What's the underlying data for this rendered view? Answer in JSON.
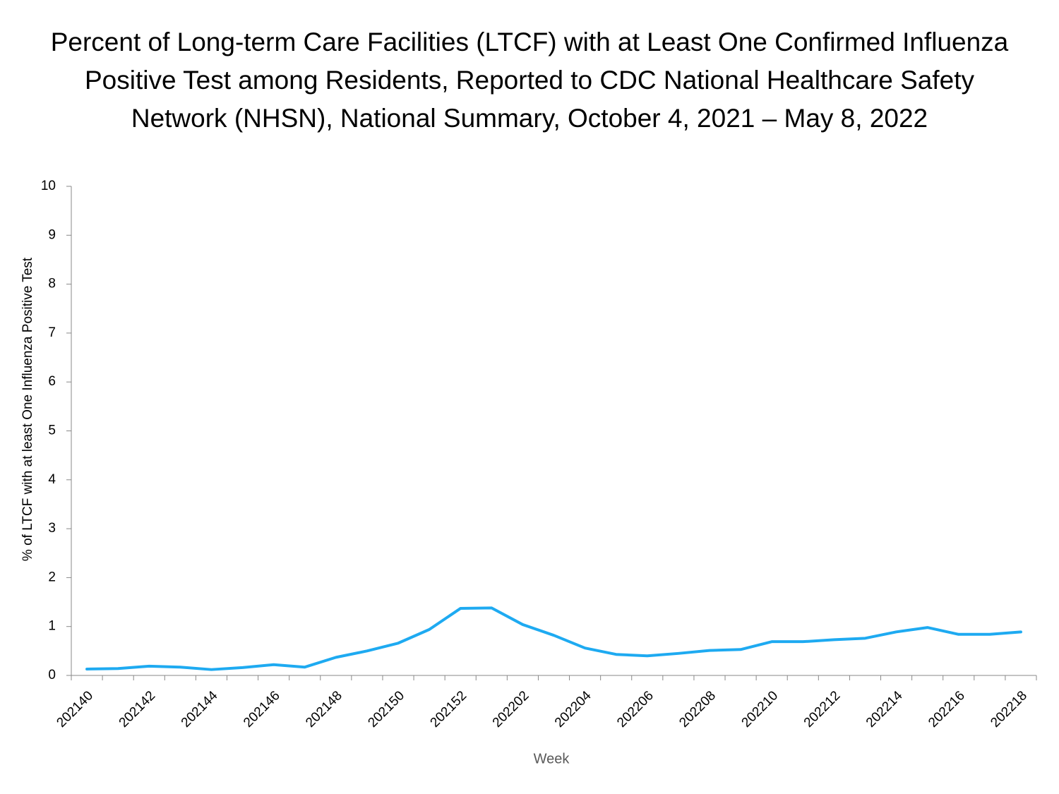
{
  "chart_data": {
    "type": "line",
    "title": [
      "Percent of Long-term Care Facilities (LTCF) with at Least One Confirmed Influenza",
      "Positive Test among Residents, Reported to CDC National Healthcare Safety",
      "Network (NHSN), National Summary, October 4, 2021 – May 8, 2022"
    ],
    "x_label": "Week",
    "y_label": "% of LTCF with at least One Influenza Positive Test",
    "categories": [
      "202140",
      null,
      "202142",
      null,
      "202144",
      null,
      "202146",
      null,
      "202148",
      null,
      "202150",
      null,
      "202152",
      null,
      "202202",
      null,
      "202204",
      null,
      "202206",
      null,
      "202208",
      null,
      "202210",
      null,
      "202212",
      null,
      "202214",
      null,
      "202216",
      null,
      "202218"
    ],
    "series": [
      {
        "name": "% of LTCF",
        "color": "#1eaaf1",
        "values": [
          0.13,
          0.14,
          0.19,
          0.17,
          0.12,
          0.16,
          0.22,
          0.17,
          0.37,
          0.5,
          0.66,
          0.94,
          1.37,
          1.38,
          1.04,
          0.82,
          0.56,
          0.43,
          0.4,
          0.45,
          0.51,
          0.53,
          0.69,
          0.69,
          0.73,
          0.76,
          0.89,
          0.98,
          0.84,
          0.84,
          0.89
        ]
      }
    ],
    "ylim": [
      0,
      10
    ],
    "yticks": [
      0,
      1,
      2,
      3,
      4,
      5,
      6,
      7,
      8,
      9,
      10
    ],
    "grid": false
  }
}
